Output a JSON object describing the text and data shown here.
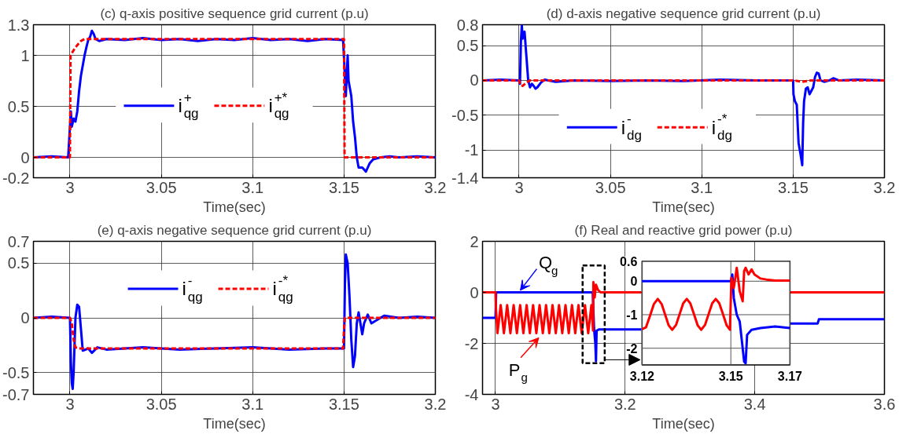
{
  "chart_data": [
    {
      "type": "line",
      "title": "(c) q-axis positive sequence grid current (p.u)",
      "xlabel": "Time(sec)",
      "xlim": [
        2.98,
        3.2
      ],
      "xticks": [
        3,
        3.05,
        3.1,
        3.15,
        3.2
      ],
      "ylim": [
        -0.2,
        1.3
      ],
      "yticks": [
        -0.2,
        0,
        0.5,
        1,
        1.3
      ],
      "grid": true,
      "legend": "center",
      "series": [
        {
          "name": "i$_{qg}$$^{+}$",
          "color": "#0000ff",
          "line_style": "solid",
          "x": [
            2.98,
            2.99,
            2.999,
            3.0005,
            3.001,
            3.002,
            3.003,
            3.004,
            3.005,
            3.006,
            3.007,
            3.008,
            3.009,
            3.01,
            3.011,
            3.012,
            3.013,
            3.014,
            3.016,
            3.02,
            3.03,
            3.04,
            3.05,
            3.06,
            3.07,
            3.08,
            3.09,
            3.1,
            3.11,
            3.12,
            3.13,
            3.14,
            3.1495,
            3.1505,
            3.151,
            3.152,
            3.1525,
            3.154,
            3.155,
            3.156,
            3.157,
            3.158,
            3.16,
            3.161,
            3.162,
            3.163,
            3.164,
            3.166,
            3.17,
            3.175,
            3.18,
            3.19,
            3.2
          ],
          "values": [
            0,
            0.01,
            0,
            0.45,
            0.3,
            0.38,
            0.35,
            0.45,
            0.65,
            0.8,
            0.9,
            1.0,
            1.08,
            1.15,
            1.18,
            1.24,
            1.21,
            1.16,
            1.14,
            1.16,
            1.15,
            1.17,
            1.15,
            1.16,
            1.14,
            1.16,
            1.15,
            1.17,
            1.15,
            1.16,
            1.14,
            1.16,
            1.15,
            0.8,
            0.6,
            1.0,
            0.75,
            0.6,
            0.35,
            0.2,
            0.0,
            -0.1,
            -0.1,
            -0.12,
            -0.14,
            -0.1,
            -0.06,
            -0.02,
            0.0,
            0.01,
            0.0,
            0.01,
            0.0
          ]
        },
        {
          "name": "i$_{qg}$$^{+*}$",
          "color": "#ff0000",
          "line_style": "dashed",
          "x": [
            2.98,
            3.0,
            3.0003,
            3.002,
            3.004,
            3.006,
            3.008,
            3.15,
            3.1503,
            3.2
          ],
          "values": [
            0,
            0,
            1.0,
            1.05,
            1.1,
            1.14,
            1.16,
            1.16,
            0,
            0
          ]
        }
      ]
    },
    {
      "type": "line",
      "title": "(d) d-axis negative sequence grid current (p.u)",
      "xlabel": "Time(sec)",
      "xlim": [
        2.98,
        3.2
      ],
      "xticks": [
        3,
        3.05,
        3.1,
        3.15,
        3.2
      ],
      "ylim": [
        -1.4,
        0.8
      ],
      "yticks": [
        -1.4,
        -1,
        -0.5,
        0,
        0.5,
        0.8
      ],
      "grid": true,
      "legend": "bottom",
      "series": [
        {
          "name": "i$_{dg}$$^{-}$",
          "color": "#0000ff",
          "line_style": "solid",
          "x": [
            2.98,
            2.99,
            3.0,
            3.0005,
            3.001,
            3.0015,
            3.002,
            3.003,
            3.004,
            3.005,
            3.006,
            3.007,
            3.008,
            3.009,
            3.01,
            3.012,
            3.014,
            3.016,
            3.02,
            3.03,
            3.05,
            3.07,
            3.09,
            3.11,
            3.13,
            3.15,
            3.1502,
            3.151,
            3.152,
            3.153,
            3.154,
            3.155,
            3.1555,
            3.156,
            3.157,
            3.158,
            3.159,
            3.16,
            3.161,
            3.162,
            3.163,
            3.164,
            3.165,
            3.167,
            3.17,
            3.172,
            3.175,
            3.185,
            3.2
          ],
          "values": [
            0,
            0.01,
            0,
            -0.05,
            0.55,
            0.79,
            0.6,
            0.7,
            0.35,
            0.0,
            -0.1,
            -0.05,
            -0.08,
            -0.12,
            -0.1,
            -0.03,
            0.01,
            0.0,
            -0.02,
            0.0,
            -0.01,
            0.0,
            -0.01,
            0.01,
            0.0,
            0.0,
            -0.2,
            -0.3,
            -0.35,
            -0.9,
            -1.05,
            -1.22,
            -0.6,
            -0.3,
            -0.12,
            -0.1,
            -0.2,
            -0.15,
            -0.1,
            0.05,
            0.11,
            0.1,
            0.0,
            -0.02,
            0.0,
            0.03,
            0.0,
            0.01,
            0.0
          ]
        },
        {
          "name": "i$_{dg}$$^{-*}$",
          "color": "#ff0000",
          "line_style": "dashed",
          "x": [
            2.98,
            3.0,
            3.0005,
            3.002,
            3.004,
            3.006,
            3.15,
            3.155,
            3.16,
            3.2
          ],
          "values": [
            0,
            0,
            -0.06,
            -0.08,
            -0.03,
            0,
            0,
            -0.02,
            0,
            0
          ]
        }
      ]
    },
    {
      "type": "line",
      "title": "(e) q-axis negative sequence grid current (p.u)",
      "xlabel": "Time(sec)",
      "xlim": [
        2.98,
        3.2
      ],
      "xticks": [
        3,
        3.05,
        3.1,
        3.15,
        3.2
      ],
      "ylim": [
        -0.7,
        0.7
      ],
      "yticks": [
        -0.7,
        -0.5,
        0,
        0.5,
        0.7
      ],
      "grid": true,
      "legend": "top",
      "series": [
        {
          "name": "i$_{qg}$$^{-}$",
          "color": "#0000ff",
          "line_style": "solid",
          "x": [
            2.98,
            2.99,
            3.0,
            3.0005,
            3.001,
            3.0015,
            3.002,
            3.003,
            3.004,
            3.005,
            3.006,
            3.007,
            3.01,
            3.012,
            3.015,
            3.02,
            3.04,
            3.06,
            3.08,
            3.1,
            3.12,
            3.14,
            3.15,
            3.1505,
            3.151,
            3.152,
            3.153,
            3.154,
            3.155,
            3.156,
            3.157,
            3.158,
            3.159,
            3.16,
            3.161,
            3.163,
            3.165,
            3.168,
            3.172,
            3.18,
            3.19,
            3.2
          ],
          "values": [
            0,
            0.01,
            0,
            -0.4,
            -0.6,
            -0.65,
            -0.5,
            0.0,
            0.12,
            0.1,
            -0.1,
            -0.3,
            -0.28,
            -0.32,
            -0.27,
            -0.29,
            -0.27,
            -0.29,
            -0.28,
            -0.27,
            -0.29,
            -0.28,
            -0.28,
            0.3,
            0.58,
            0.5,
            0.2,
            -0.2,
            -0.45,
            -0.35,
            -0.05,
            0.05,
            -0.05,
            -0.15,
            -0.05,
            0.03,
            -0.05,
            -0.02,
            0.02,
            0.0,
            0.01,
            0.0
          ]
        },
        {
          "name": "i$_{qg}$$^{-*}$",
          "color": "#ff0000",
          "line_style": "dashed",
          "x": [
            2.98,
            3.0,
            3.001,
            3.002,
            3.003,
            3.005,
            3.1495,
            3.15,
            3.1505,
            3.2
          ],
          "values": [
            0,
            0,
            -0.05,
            -0.2,
            -0.27,
            -0.28,
            -0.28,
            -0.1,
            0,
            0
          ]
        }
      ]
    },
    {
      "type": "line",
      "title": "(f) Real and reactive grid power (p.u)",
      "xlabel": "Time(sec)",
      "xlim": [
        2.98,
        3.6
      ],
      "xticks": [
        3,
        3.2,
        3.4,
        3.6
      ],
      "ylim": [
        -4,
        2
      ],
      "yticks": [
        -4,
        -2,
        0,
        2
      ],
      "grid": true,
      "series": [
        {
          "name": "Q$_{g}$",
          "color": "#0000ff",
          "line_style": "solid",
          "x": [
            2.98,
            3.0,
            3.001,
            3.05,
            3.1,
            3.15,
            3.152,
            3.154,
            3.155,
            3.156,
            3.16,
            3.225,
            3.3,
            3.455,
            3.497,
            3.499,
            3.6
          ],
          "values": [
            -1.0,
            -1.0,
            0,
            0,
            0,
            0,
            -1.4,
            -2.0,
            -2.7,
            -1.5,
            -1.45,
            -1.45,
            null,
            -1.22,
            -1.22,
            -1.05,
            -1.05
          ]
        },
        {
          "name": "P$_{g}$",
          "color": "#ff0000",
          "line_style": "solid",
          "x": [
            2.98,
            3.0,
            3.0005,
            3.003,
            3.008,
            3.013,
            3.018,
            3.023,
            3.028,
            3.033,
            3.038,
            3.043,
            3.048,
            3.053,
            3.058,
            3.063,
            3.068,
            3.073,
            3.078,
            3.083,
            3.088,
            3.093,
            3.098,
            3.103,
            3.108,
            3.113,
            3.118,
            3.123,
            3.128,
            3.133,
            3.138,
            3.143,
            3.148,
            3.1505,
            3.151,
            3.153,
            3.155,
            3.158,
            3.162,
            3.225,
            3.3,
            3.455,
            3.5,
            3.6
          ],
          "values": [
            0,
            0,
            -0.5,
            -1.6,
            -0.5,
            -1.6,
            -0.5,
            -1.6,
            -0.5,
            -1.6,
            -0.5,
            -1.6,
            -0.5,
            -1.6,
            -0.5,
            -1.6,
            -0.5,
            -1.6,
            -0.5,
            -1.6,
            -0.5,
            -1.6,
            -0.5,
            -1.6,
            -0.5,
            -1.6,
            -0.5,
            -1.6,
            -0.5,
            -1.6,
            -0.5,
            -1.6,
            -0.5,
            -1.5,
            0.4,
            -0.2,
            0.3,
            0.1,
            0,
            0,
            null,
            0,
            0,
            0
          ]
        }
      ]
    },
    {
      "type": "line",
      "xlim": [
        3.12,
        3.17
      ],
      "xticks": [
        3.12,
        3.15,
        3.17
      ],
      "ylim": [
        -2.5,
        0.6
      ],
      "yticks": [
        -2,
        -1,
        0,
        0.6
      ],
      "grid": true,
      "series": [
        {
          "color": "#0000ff",
          "line_style": "solid",
          "x": [
            3.12,
            3.13,
            3.14,
            3.15,
            3.1505,
            3.151,
            3.152,
            3.153,
            3.154,
            3.1545,
            3.155,
            3.1555,
            3.157,
            3.16,
            3.165,
            3.17
          ],
          "values": [
            0,
            0,
            0,
            0,
            0.2,
            -0.5,
            -1.0,
            -1.2,
            -2.0,
            -2.4,
            -2.45,
            -1.6,
            -1.45,
            -1.4,
            -1.35,
            -1.4
          ]
        },
        {
          "color": "#ff0000",
          "line_style": "solid",
          "x": [
            3.12,
            3.1213,
            3.1228,
            3.124,
            3.1253,
            3.1266,
            3.1278,
            3.129,
            3.1302,
            3.1315,
            3.1327,
            3.1339,
            3.1351,
            3.1363,
            3.1376,
            3.1388,
            3.14,
            3.1413,
            3.1425,
            3.1437,
            3.1449,
            3.1461,
            3.1473,
            3.1486,
            3.1497,
            3.1502,
            3.151,
            3.152,
            3.153,
            3.154,
            3.1545,
            3.155,
            3.156,
            3.157,
            3.158,
            3.16,
            3.162,
            3.165,
            3.17
          ],
          "values": [
            -1.43,
            -1.38,
            -1.0,
            -0.68,
            -0.53,
            -0.68,
            -1.0,
            -1.32,
            -1.45,
            -1.3,
            -0.98,
            -0.66,
            -0.53,
            -0.66,
            -1.0,
            -1.32,
            -1.45,
            -1.3,
            -0.98,
            -0.66,
            -0.53,
            -0.66,
            -0.97,
            -1.32,
            -1.45,
            0.1,
            -0.2,
            0.4,
            -0.3,
            -0.6,
            0.3,
            0.4,
            0.2,
            0.35,
            0.2,
            0.08,
            0.05,
            0.02,
            0.02
          ]
        }
      ]
    }
  ]
}
